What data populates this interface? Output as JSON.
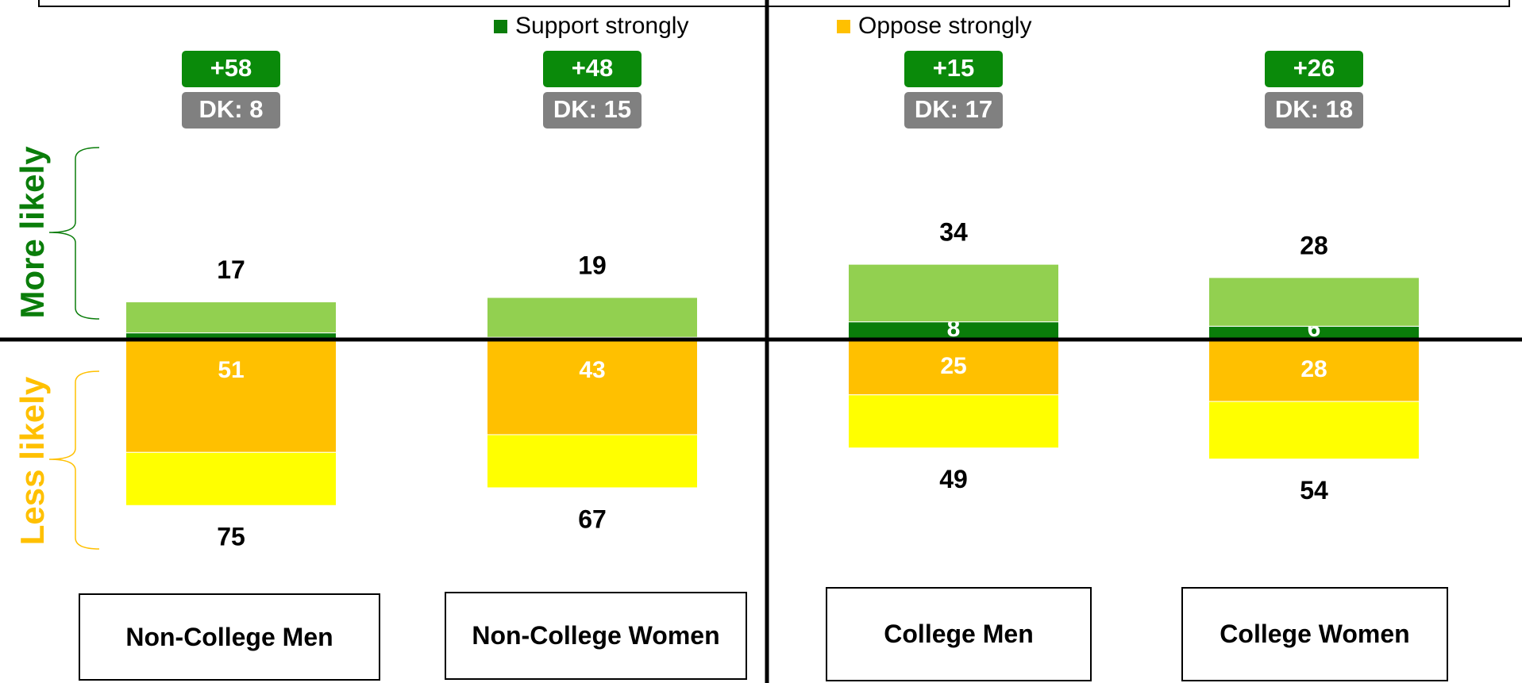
{
  "chart_data": {
    "type": "diverging_stacked_bar",
    "side_labels": {
      "up": "More likely",
      "down": "Less likely"
    },
    "categories": [
      "Non-College Men",
      "Non-College Women",
      "College Men",
      "College Women"
    ],
    "series": [
      {
        "name": "Support strongly",
        "color": "#0a7d0a",
        "direction": "up",
        "values": [
          3,
          1,
          8,
          6
        ],
        "value_labels": [
          null,
          null,
          "8",
          "6"
        ]
      },
      {
        "color": "#92d050",
        "direction": "up",
        "values": [
          14,
          18,
          26,
          22
        ]
      },
      {
        "name": "Oppose strongly",
        "color": "#ffc000",
        "direction": "down",
        "values": [
          51,
          43,
          25,
          28
        ],
        "value_labels": [
          "51",
          "43",
          "25",
          "28"
        ]
      },
      {
        "color": "#ffff00",
        "direction": "down",
        "values": [
          24,
          24,
          24,
          26
        ]
      }
    ],
    "up_totals": [
      17,
      19,
      34,
      28
    ],
    "down_totals": [
      75,
      67,
      49,
      54
    ],
    "net": [
      {
        "value": 58,
        "label": "+58"
      },
      {
        "value": 48,
        "label": "+48"
      },
      {
        "value": 15,
        "label": "+15"
      },
      {
        "value": 26,
        "label": "+26"
      }
    ],
    "dk": [
      {
        "value": 8,
        "label": "DK: 8"
      },
      {
        "value": 15,
        "label": "DK: 15"
      },
      {
        "value": 17,
        "label": "DK: 17"
      },
      {
        "value": 18,
        "label": "DK: 18"
      }
    ]
  }
}
